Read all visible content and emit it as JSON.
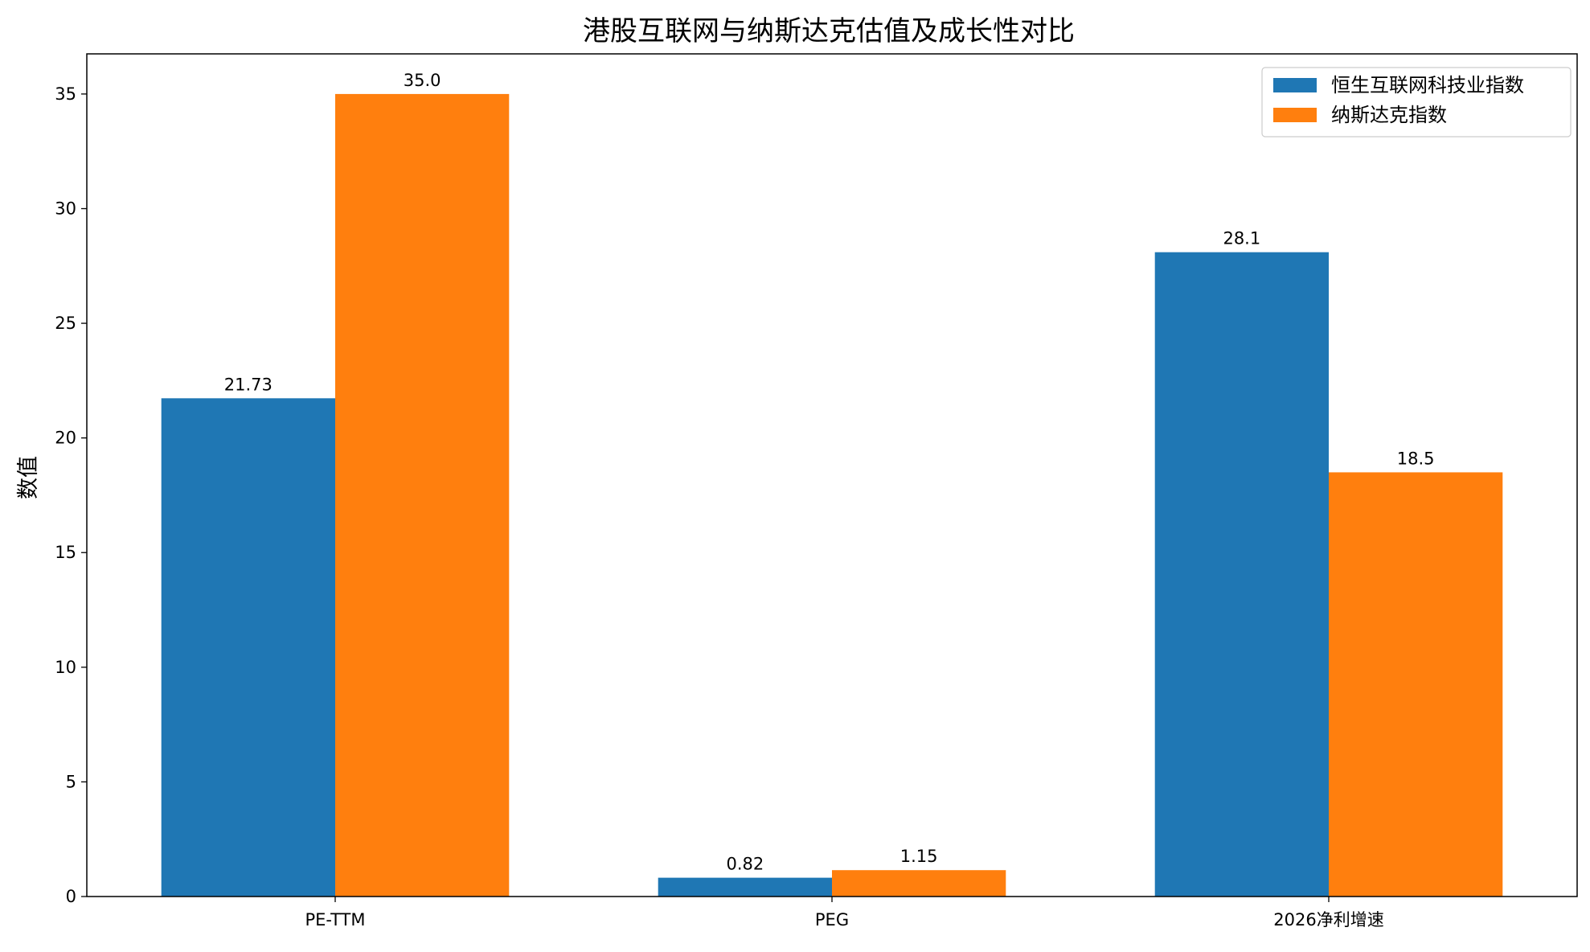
{
  "chart_data": {
    "type": "bar",
    "title": "港股互联网与纳斯达克估值及成长性对比",
    "xlabel": "",
    "ylabel": "数值",
    "categories": [
      "PE-TTM",
      "PEG",
      "2026净利增速"
    ],
    "series": [
      {
        "name": "恒生互联网科技业指数",
        "color": "#1f77b4",
        "values": [
          21.73,
          0.82,
          28.1
        ],
        "labels": [
          "21.73",
          "0.82",
          "28.1"
        ]
      },
      {
        "name": "纳斯达克指数",
        "color": "#ff7f0e",
        "values": [
          35.0,
          1.15,
          18.5
        ],
        "labels": [
          "35.0",
          "1.15",
          "18.5"
        ]
      }
    ],
    "ylim": [
      0,
      36.75
    ],
    "yticks": [
      0,
      5,
      10,
      15,
      20,
      25,
      30,
      35
    ],
    "grid": false,
    "legend_position": "top-right"
  }
}
